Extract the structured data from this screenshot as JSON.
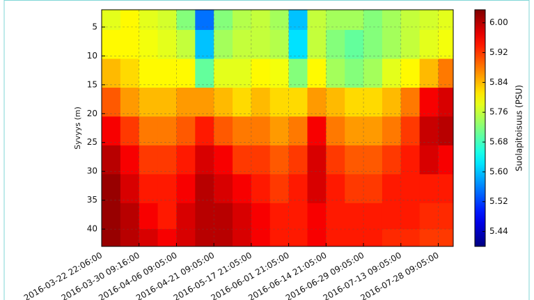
{
  "chart_data": {
    "type": "heatmap",
    "y_label": "Syvyys (m)",
    "colorbar_label": "Suolapitoisuus (PSU)",
    "colormap": "jet",
    "xlim": [
      0,
      9.4
    ],
    "xticks": [
      {
        "value": 0,
        "label": "2016-03-22 22:06:00"
      },
      {
        "value": 1,
        "label": "2016-03-30 09:16:00"
      },
      {
        "value": 2,
        "label": "2016-04-06 09:05:00"
      },
      {
        "value": 3,
        "label": "2016-04-21 09:05:00"
      },
      {
        "value": 4,
        "label": "2016-05-17 21:05:00"
      },
      {
        "value": 5,
        "label": "2016-06-01 21:05:00"
      },
      {
        "value": 6,
        "label": "2016-06-14 21:05:00"
      },
      {
        "value": 7,
        "label": "2016-06-29 09:05:00"
      },
      {
        "value": 8,
        "label": "2016-07-13 09:05:00"
      },
      {
        "value": 9,
        "label": "2016-07-28 09:05:00"
      }
    ],
    "ylim": [
      43,
      2
    ],
    "yticks": [
      5,
      10,
      15,
      20,
      25,
      30,
      35,
      40
    ],
    "zlim": [
      5.4,
      6.035
    ],
    "zticks": [
      {
        "value": 6.0,
        "label": "6.00"
      },
      5.92,
      5.84,
      5.76,
      5.68,
      {
        "value": 5.6,
        "label": "5.60"
      },
      5.52,
      5.44
    ],
    "grid": true,
    "x": [
      0.25,
      0.75,
      1.25,
      1.75,
      2.25,
      2.75,
      3.25,
      3.75,
      4.25,
      4.75,
      5.25,
      5.75,
      6.25,
      6.75,
      7.25,
      7.75,
      8.25,
      8.75,
      9.25
    ],
    "y": [
      3,
      8,
      13,
      18,
      23,
      28,
      33,
      38,
      42
    ],
    "z": [
      [
        5.78,
        5.8,
        5.78,
        5.77,
        5.72,
        5.55,
        5.72,
        5.75,
        5.76,
        5.74,
        5.6,
        5.76,
        5.74,
        5.74,
        5.72,
        5.74,
        5.76,
        5.77,
        5.78
      ],
      [
        5.8,
        5.8,
        5.79,
        5.78,
        5.76,
        5.6,
        5.74,
        5.76,
        5.76,
        5.75,
        5.62,
        5.76,
        5.72,
        5.7,
        5.72,
        5.74,
        5.76,
        5.78,
        5.79
      ],
      [
        5.84,
        5.82,
        5.8,
        5.8,
        5.8,
        5.7,
        5.78,
        5.78,
        5.8,
        5.79,
        5.72,
        5.8,
        5.74,
        5.72,
        5.74,
        5.78,
        5.8,
        5.84,
        5.88
      ],
      [
        5.9,
        5.86,
        5.84,
        5.84,
        5.86,
        5.86,
        5.84,
        5.82,
        5.84,
        5.82,
        5.82,
        5.86,
        5.84,
        5.82,
        5.82,
        5.84,
        5.88,
        5.96,
        5.98
      ],
      [
        5.96,
        5.92,
        5.88,
        5.88,
        5.9,
        5.94,
        5.9,
        5.88,
        5.88,
        5.86,
        5.88,
        5.96,
        5.88,
        5.86,
        5.86,
        5.88,
        5.92,
        5.99,
        6.0
      ],
      [
        6.0,
        5.96,
        5.92,
        5.92,
        5.94,
        5.98,
        5.96,
        5.92,
        5.92,
        5.9,
        5.92,
        5.98,
        5.92,
        5.9,
        5.9,
        5.92,
        5.94,
        5.98,
        5.96
      ],
      [
        6.02,
        5.98,
        5.94,
        5.94,
        5.96,
        6.0,
        5.98,
        5.96,
        5.94,
        5.92,
        5.94,
        5.98,
        5.94,
        5.92,
        5.92,
        5.94,
        5.94,
        5.94,
        5.94
      ],
      [
        6.02,
        6.0,
        5.96,
        5.94,
        5.98,
        6.0,
        6.0,
        5.98,
        5.96,
        5.94,
        5.94,
        5.96,
        5.94,
        5.94,
        5.94,
        5.94,
        5.94,
        5.93,
        5.93
      ],
      [
        6.02,
        6.0,
        5.98,
        5.96,
        5.98,
        6.0,
        6.0,
        5.98,
        5.96,
        5.94,
        5.94,
        5.96,
        5.94,
        5.94,
        5.94,
        5.93,
        5.93,
        5.92,
        5.92
      ]
    ]
  }
}
